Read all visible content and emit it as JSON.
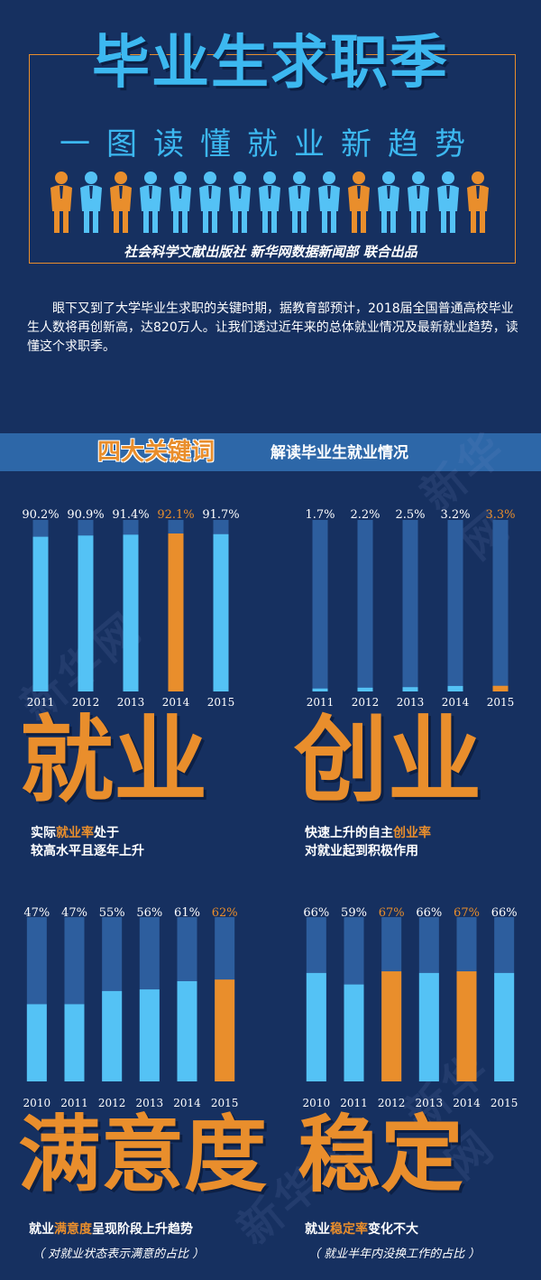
{
  "header": {
    "title": "毕业生求职季",
    "subtitle": "一图读懂就业新趋势",
    "publisher": "社会科学文献出版社 新华网数据新闻部 联合出品"
  },
  "intro": "眼下又到了大学毕业生求职的关键时期，据教育部预计，2018届全国普通高校毕业生人数将再创新高，达820万人。让我们透过近年来的总体就业情况及最新就业趋势，读懂这个求职季。",
  "banner": {
    "key": "四大关键词",
    "rest": "解读毕业生就业情况"
  },
  "watermark": "新华网",
  "colors": {
    "background": "#163060",
    "bar_track": "#2d5e9e",
    "bar_fill": "#54c2f5",
    "highlight": "#e98e2c",
    "banner": "#2d67a8"
  },
  "sections": [
    {
      "word": "就业",
      "caption_pre": "实际",
      "caption_hl": "就业率",
      "caption_post": "处于",
      "caption_line2": "较高水平且逐年上升"
    },
    {
      "word": "创业",
      "caption_pre": "快速上升的自主",
      "caption_hl": "创业率",
      "caption_post": "",
      "caption_line2": "对就业起到积极作用"
    },
    {
      "word": "满意度",
      "caption_pre": "就业",
      "caption_hl": "满意度",
      "caption_post": "呈现阶段上升趋势",
      "caption_line2": "",
      "note": "（ 对就业状态表示满意的占比 ）"
    },
    {
      "word": "稳定",
      "caption_pre": "就业",
      "caption_hl": "稳定率",
      "caption_post": "变化不大",
      "caption_line2": "",
      "note": "（ 就业半年内没换工作的占比 ）"
    }
  ],
  "chart_data": [
    {
      "type": "bar",
      "categories": [
        "2011",
        "2012",
        "2013",
        "2014",
        "2015"
      ],
      "values": [
        90.2,
        90.9,
        91.4,
        92.1,
        91.7
      ],
      "labels": [
        "90.2%",
        "90.9%",
        "91.4%",
        "92.1%",
        "91.7%"
      ],
      "highlight": [
        false,
        false,
        false,
        true,
        false
      ],
      "ylim": [
        0,
        100
      ]
    },
    {
      "type": "bar",
      "categories": [
        "2011",
        "2012",
        "2013",
        "2014",
        "2015"
      ],
      "values": [
        1.7,
        2.2,
        2.5,
        3.2,
        3.3
      ],
      "labels": [
        "1.7%",
        "2.2%",
        "2.5%",
        "3.2%",
        "3.3%"
      ],
      "highlight": [
        false,
        false,
        false,
        false,
        true
      ],
      "ylim": [
        0,
        100
      ]
    },
    {
      "type": "bar",
      "categories": [
        "2010",
        "2011",
        "2012",
        "2013",
        "2014",
        "2015"
      ],
      "values": [
        47,
        47,
        55,
        56,
        61,
        62
      ],
      "labels": [
        "47%",
        "47%",
        "55%",
        "56%",
        "61%",
        "62%"
      ],
      "highlight": [
        false,
        false,
        false,
        false,
        false,
        true
      ],
      "ylim": [
        0,
        100
      ]
    },
    {
      "type": "bar",
      "categories": [
        "2010",
        "2011",
        "2012",
        "2013",
        "2014",
        "2015"
      ],
      "values": [
        66,
        59,
        67,
        66,
        67,
        66
      ],
      "labels": [
        "66%",
        "59%",
        "67%",
        "66%",
        "67%",
        "66%"
      ],
      "highlight": [
        false,
        false,
        true,
        false,
        true,
        false
      ],
      "ylim": [
        0,
        100
      ]
    }
  ]
}
